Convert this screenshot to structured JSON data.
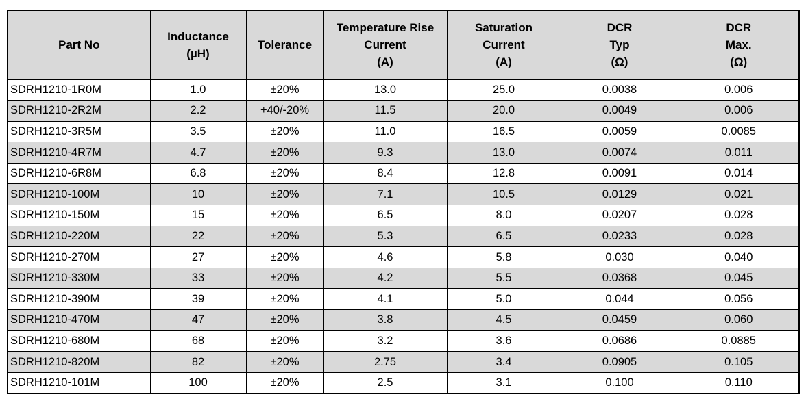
{
  "table": {
    "headers": [
      [
        "Part No"
      ],
      [
        "Inductance",
        "(µH)"
      ],
      [
        "Tolerance"
      ],
      [
        "Temperature Rise",
        "Current",
        "(A)"
      ],
      [
        "Saturation",
        "Current",
        "(A)"
      ],
      [
        "DCR",
        "Typ",
        "(Ω)"
      ],
      [
        "DCR",
        "Max.",
        "(Ω)"
      ]
    ],
    "rows": [
      [
        "SDRH1210-1R0M",
        "1.0",
        "±20%",
        "13.0",
        "25.0",
        "0.0038",
        "0.006"
      ],
      [
        "SDRH1210-2R2M",
        "2.2",
        "+40/-20%",
        "11.5",
        "20.0",
        "0.0049",
        "0.006"
      ],
      [
        "SDRH1210-3R5M",
        "3.5",
        "±20%",
        "11.0",
        "16.5",
        "0.0059",
        "0.0085"
      ],
      [
        "SDRH1210-4R7M",
        "4.7",
        "±20%",
        "9.3",
        "13.0",
        "0.0074",
        "0.011"
      ],
      [
        "SDRH1210-6R8M",
        "6.8",
        "±20%",
        "8.4",
        "12.8",
        "0.0091",
        "0.014"
      ],
      [
        "SDRH1210-100M",
        "10",
        "±20%",
        "7.1",
        "10.5",
        "0.0129",
        "0.021"
      ],
      [
        "SDRH1210-150M",
        "15",
        "±20%",
        "6.5",
        "8.0",
        "0.0207",
        "0.028"
      ],
      [
        "SDRH1210-220M",
        "22",
        "±20%",
        "5.3",
        "6.5",
        "0.0233",
        "0.028"
      ],
      [
        "SDRH1210-270M",
        "27",
        "±20%",
        "4.6",
        "5.8",
        "0.030",
        "0.040"
      ],
      [
        "SDRH1210-330M",
        "33",
        "±20%",
        "4.2",
        "5.5",
        "0.0368",
        "0.045"
      ],
      [
        "SDRH1210-390M",
        "39",
        "±20%",
        "4.1",
        "5.0",
        "0.044",
        "0.056"
      ],
      [
        "SDRH1210-470M",
        "47",
        "±20%",
        "3.8",
        "4.5",
        "0.0459",
        "0.060"
      ],
      [
        "SDRH1210-680M",
        "68",
        "±20%",
        "3.2",
        "3.6",
        "0.0686",
        "0.0885"
      ],
      [
        "SDRH1210-820M",
        "82",
        "±20%",
        "2.75",
        "3.4",
        "0.0905",
        "0.105"
      ],
      [
        "SDRH1210-101M",
        "100",
        "±20%",
        "2.5",
        "3.1",
        "0.100",
        "0.110"
      ]
    ]
  },
  "colors": {
    "header_background": "#d9d9d9",
    "stripe_background": "#d9d9d9",
    "border": "#000000",
    "text": "#000000"
  }
}
